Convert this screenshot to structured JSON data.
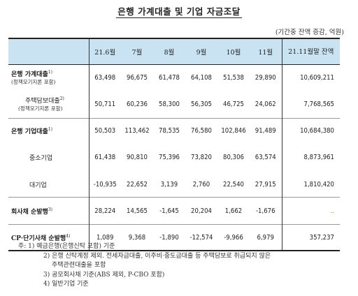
{
  "title": "은행 가계대출 및 기업 자금조달",
  "unit": "(기간중 잔액 증감, 억원)",
  "header": {
    "months": [
      "21.6월",
      "7월",
      "8월",
      "9월",
      "10월",
      "11월"
    ],
    "last": "21.11월말 잔액"
  },
  "rows": [
    {
      "label": "은행 가계대출",
      "note": "1)",
      "sub": "(정책모기지론 포함)",
      "values": [
        "63,498",
        "96,675",
        "61,478",
        "64,108",
        "51,538",
        "29,890"
      ],
      "last": "10,609,211"
    },
    {
      "label": "주택담보대출",
      "note": "2)",
      "sub": "(정책모기지론 포함)",
      "values": [
        "50,711",
        "60,236",
        "58,300",
        "56,305",
        "46,725",
        "24,062"
      ],
      "last": "7,768,565"
    },
    {
      "label": "은행 기업대출",
      "note": "1)",
      "sub": "",
      "values": [
        "50,503",
        "113,462",
        "78,535",
        "76,580",
        "102,846",
        "91,489"
      ],
      "last": "10,684,380"
    },
    {
      "label": "중소기업",
      "note": "",
      "sub": "",
      "values": [
        "61,438",
        "90,810",
        "75,396",
        "73,820",
        "80,306",
        "63,574"
      ],
      "last": "8,873,961"
    },
    {
      "label": "대기업",
      "note": "",
      "sub": "",
      "values": [
        "-10,935",
        "22,652",
        "3,139",
        "2,760",
        "22,540",
        "27,915"
      ],
      "last": "1,810,420"
    },
    {
      "label": "회사채 순발행",
      "note": "3)",
      "sub": "",
      "values": [
        "28,224",
        "14,565",
        "-1,645",
        "20,204",
        "1,662",
        "-1,676"
      ],
      "last": ".."
    },
    {
      "label": "CP·단기사채 순발행",
      "note": "4)",
      "sub": "",
      "values": [
        "1,089",
        "9,368",
        "-1,890",
        "-12,574",
        "-9,966",
        "6,979"
      ],
      "last": "357,237"
    }
  ],
  "notes": [
    "주: 1) 예금은행(은행신탁 포함) 기준",
    "2) 은행 신탁계정 제외. 전세자금대출, 이주비·중도금대출 등 주택담보로 취급되지 않은",
    "주택관련대출을 포함",
    "3) 공모회사채 기준(ABS 제외, P-CBO 포함)",
    "4) 일반기업 기준"
  ]
}
